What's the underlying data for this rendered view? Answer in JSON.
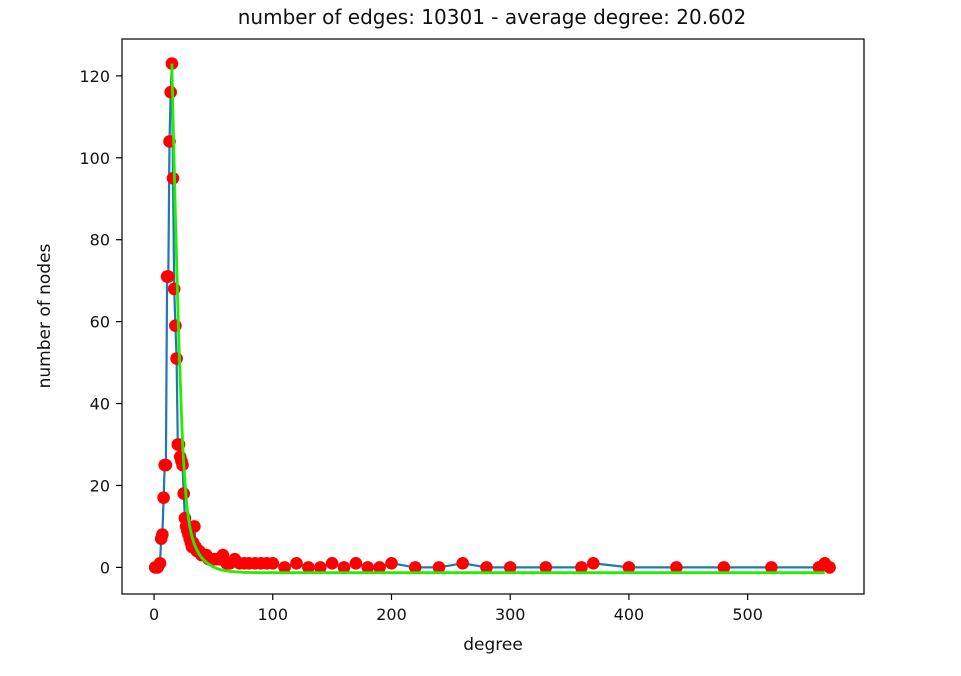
{
  "chart_data": {
    "type": "line",
    "title": "number of edges: 10301 - average degree: 20.602",
    "xlabel": "degree",
    "ylabel": "number of nodes",
    "xlim": [
      -27,
      598
    ],
    "ylim": [
      -6.5,
      129
    ],
    "x_ticks": [
      0,
      100,
      200,
      300,
      400,
      500
    ],
    "y_ticks": [
      0,
      20,
      40,
      60,
      80,
      100,
      120
    ],
    "grid": false,
    "legend": "none",
    "colors": {
      "line": "#1f77b4",
      "markers": "#ff0000",
      "fit": "#22ee00"
    },
    "series": [
      {
        "type": "line+markers",
        "x": [
          1,
          3,
          5,
          6,
          7,
          8,
          9,
          10,
          11,
          12,
          13,
          14,
          15,
          16,
          17,
          18,
          19,
          20,
          21,
          22,
          23,
          24,
          25,
          26,
          27,
          28,
          29,
          30,
          31,
          32,
          33,
          34,
          35,
          36,
          38,
          40,
          42,
          44,
          46,
          48,
          50,
          52,
          55,
          58,
          61,
          64,
          68,
          72,
          76,
          80,
          85,
          90,
          95,
          100,
          110,
          120,
          130,
          140,
          150,
          160,
          170,
          180,
          190,
          200,
          220,
          240,
          260,
          280,
          300,
          330,
          360,
          370,
          400,
          440,
          480,
          520,
          560,
          565,
          569
        ],
        "y": [
          0,
          0,
          1,
          7,
          8,
          17,
          25,
          25,
          71,
          71,
          104,
          116,
          123,
          95,
          68,
          59,
          51,
          30,
          30,
          27,
          26,
          25,
          18,
          12,
          10,
          9,
          8,
          7,
          6,
          5,
          6,
          10,
          5,
          4,
          4,
          3,
          3,
          3,
          2,
          2,
          2,
          2,
          2,
          3,
          1,
          1,
          2,
          1,
          1,
          1,
          1,
          1,
          1,
          1,
          0,
          1,
          0,
          0,
          1,
          0,
          1,
          0,
          0,
          1,
          0,
          0,
          1,
          0,
          0,
          0,
          0,
          1,
          0,
          0,
          0,
          0,
          0,
          1,
          0
        ]
      },
      {
        "type": "fit",
        "x": [
          15,
          16,
          17,
          18,
          19,
          20,
          21,
          22,
          23,
          24,
          25,
          26,
          27,
          28,
          30,
          32,
          34,
          36,
          38,
          40,
          43,
          46,
          50,
          55,
          60,
          65,
          70,
          75,
          80,
          90,
          100,
          150,
          200,
          300,
          400,
          500,
          565
        ],
        "y": [
          123,
          110,
          98,
          86,
          75,
          64,
          54,
          46,
          38,
          31,
          25.5,
          21,
          17,
          14,
          10,
          7.5,
          5.6,
          4.3,
          3.2,
          2.4,
          1.5,
          0.8,
          0.1,
          -0.5,
          -0.8,
          -1.0,
          -1.1,
          -1.2,
          -1.25,
          -1.3,
          -1.3,
          -1.3,
          -1.3,
          -1.3,
          -1.3,
          -1.3,
          -1.3
        ]
      }
    ]
  }
}
